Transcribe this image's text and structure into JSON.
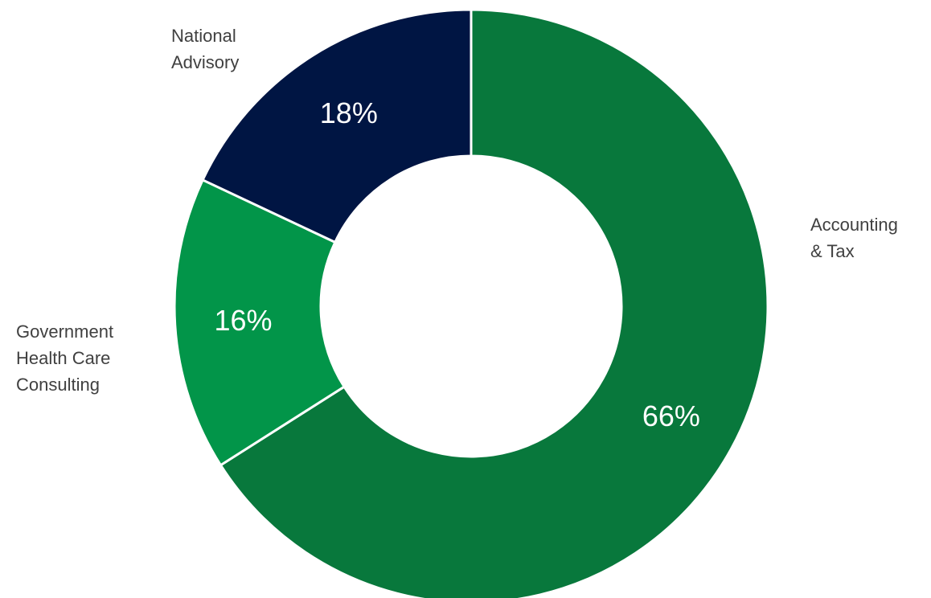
{
  "chart_data": {
    "type": "pie",
    "variant": "donut",
    "slices": [
      {
        "category": "Accounting & Tax",
        "category_lines": [
          "Accounting",
          "& Tax"
        ],
        "value": 66,
        "value_label": "66%",
        "color": "#08783c"
      },
      {
        "category": "Government Health Care Consulting",
        "category_lines": [
          "Government",
          "Health Care",
          "Consulting"
        ],
        "value": 16,
        "value_label": "16%",
        "color": "#029549"
      },
      {
        "category": "National Advisory",
        "category_lines": [
          "National",
          "Advisory"
        ],
        "value": 18,
        "value_label": "18%",
        "color": "#001543"
      }
    ],
    "separator_color": "#ffffff",
    "start": "12 o'clock",
    "direction": "clockwise"
  }
}
